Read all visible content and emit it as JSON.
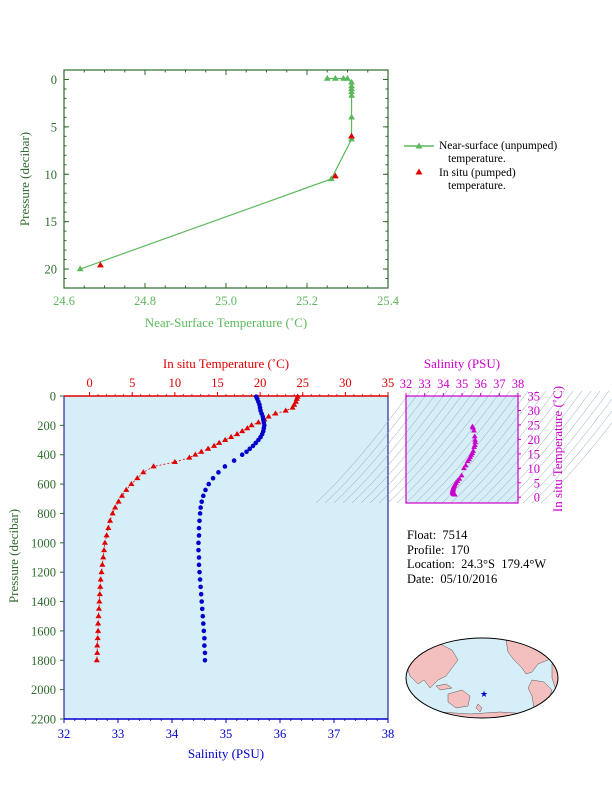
{
  "colors": {
    "green": "#5cb85c",
    "axis_green": "#2f6b2f",
    "red": "#e00000",
    "blue": "#0000cc",
    "magenta": "#cc00cc",
    "panel_bg": "#d6eef8",
    "land": "#f4bfbf",
    "ocean": "#d6eef8"
  },
  "float_info": {
    "float": "Float:  7514",
    "profile": "Profile:  170",
    "location": "Location:  24.3°S  179.4°W",
    "date": "Date:  05/10/2016"
  },
  "chart_data": [
    {
      "type": "line",
      "xlabel": "Near-Surface Temperature (˚C)",
      "ylabel": "Pressure (decibar)",
      "xlim": [
        24.6,
        25.4
      ],
      "ylim": [
        22,
        -1
      ],
      "xticks": [
        "24.6",
        "24.8",
        "25.0",
        "25.2",
        "25.4"
      ],
      "yticks": [
        "0",
        "5",
        "10",
        "15",
        "20"
      ],
      "series": [
        {
          "name": "Near-surface (unpumped) temperature.",
          "marker": "triangle",
          "color": "green",
          "points": [
            [
              25.25,
              -0.1
            ],
            [
              25.27,
              -0.1
            ],
            [
              25.29,
              -0.1
            ],
            [
              25.3,
              -0.1
            ],
            [
              25.31,
              0.3
            ],
            [
              25.31,
              0.7
            ],
            [
              25.31,
              1.0
            ],
            [
              25.31,
              1.3
            ],
            [
              25.31,
              1.7
            ],
            [
              25.31,
              4.0
            ],
            [
              25.31,
              6.3
            ],
            [
              25.26,
              10.5
            ],
            [
              24.64,
              20.0
            ]
          ]
        },
        {
          "name": "In situ (pumped) temperature.",
          "marker": "triangle",
          "color": "red",
          "points": [
            [
              25.31,
              6.0
            ],
            [
              25.27,
              10.2
            ],
            [
              24.69,
              19.6
            ]
          ]
        }
      ]
    },
    {
      "type": "line",
      "ylabel": "Pressure (decibar)",
      "top_xlabel": "In situ Temperature (˚C)",
      "bottom_xlabel": "Salinity (PSU)",
      "temp_lim": [
        -3,
        35
      ],
      "sal_lim": [
        32,
        38
      ],
      "ylim": [
        2200,
        0
      ],
      "temp_ticks": [
        "0",
        "5",
        "10",
        "15",
        "20",
        "25",
        "30",
        "35"
      ],
      "sal_ticks": [
        "32",
        "33",
        "34",
        "35",
        "36",
        "37",
        "38"
      ],
      "yticks": [
        "0",
        "200",
        "400",
        "600",
        "800",
        "1000",
        "1200",
        "1400",
        "1600",
        "1800",
        "2000",
        "2200"
      ],
      "series": [
        {
          "name": "In situ Temperature",
          "axis": "temperature",
          "marker": "triangle",
          "color": "red",
          "points": [
            [
              24.4,
              5
            ],
            [
              24.3,
              20
            ],
            [
              24.2,
              40
            ],
            [
              24.0,
              60
            ],
            [
              23.8,
              80
            ],
            [
              23.0,
              100
            ],
            [
              21.8,
              120
            ],
            [
              21.0,
              140
            ],
            [
              20.5,
              160
            ],
            [
              19.8,
              180
            ],
            [
              19.0,
              200
            ],
            [
              18.5,
              220
            ],
            [
              17.9,
              240
            ],
            [
              17.3,
              260
            ],
            [
              16.6,
              280
            ],
            [
              15.9,
              300
            ],
            [
              15.2,
              320
            ],
            [
              14.6,
              340
            ],
            [
              13.9,
              360
            ],
            [
              13.1,
              380
            ],
            [
              12.4,
              400
            ],
            [
              11.7,
              420
            ],
            [
              10.0,
              450
            ],
            [
              7.5,
              480
            ],
            [
              6.3,
              520
            ],
            [
              5.6,
              560
            ],
            [
              4.9,
              600
            ],
            [
              4.3,
              640
            ],
            [
              3.8,
              680
            ],
            [
              3.4,
              720
            ],
            [
              3.0,
              760
            ],
            [
              2.7,
              800
            ],
            [
              2.4,
              850
            ],
            [
              2.2,
              900
            ],
            [
              2.0,
              950
            ],
            [
              1.8,
              1000
            ],
            [
              1.7,
              1050
            ],
            [
              1.6,
              1100
            ],
            [
              1.5,
              1150
            ],
            [
              1.4,
              1200
            ],
            [
              1.3,
              1250
            ],
            [
              1.25,
              1300
            ],
            [
              1.2,
              1350
            ],
            [
              1.15,
              1400
            ],
            [
              1.1,
              1450
            ],
            [
              1.05,
              1500
            ],
            [
              1.0,
              1550
            ],
            [
              1.0,
              1600
            ],
            [
              0.95,
              1650
            ],
            [
              0.9,
              1700
            ],
            [
              0.9,
              1750
            ],
            [
              0.85,
              1800
            ]
          ]
        },
        {
          "name": "Salinity",
          "axis": "salinity",
          "marker": "circle",
          "color": "blue",
          "points": [
            [
              35.56,
              5
            ],
            [
              35.58,
              20
            ],
            [
              35.6,
              40
            ],
            [
              35.62,
              60
            ],
            [
              35.63,
              80
            ],
            [
              35.64,
              100
            ],
            [
              35.66,
              120
            ],
            [
              35.68,
              140
            ],
            [
              35.69,
              160
            ],
            [
              35.7,
              180
            ],
            [
              35.71,
              200
            ],
            [
              35.7,
              220
            ],
            [
              35.69,
              240
            ],
            [
              35.67,
              260
            ],
            [
              35.64,
              280
            ],
            [
              35.6,
              300
            ],
            [
              35.55,
              320
            ],
            [
              35.5,
              340
            ],
            [
              35.44,
              360
            ],
            [
              35.38,
              380
            ],
            [
              35.3,
              400
            ],
            [
              35.15,
              440
            ],
            [
              34.98,
              480
            ],
            [
              34.86,
              520
            ],
            [
              34.76,
              560
            ],
            [
              34.68,
              600
            ],
            [
              34.62,
              640
            ],
            [
              34.58,
              680
            ],
            [
              34.55,
              720
            ],
            [
              34.53,
              760
            ],
            [
              34.52,
              800
            ],
            [
              34.51,
              850
            ],
            [
              34.5,
              900
            ],
            [
              34.5,
              950
            ],
            [
              34.49,
              1000
            ],
            [
              34.49,
              1050
            ],
            [
              34.5,
              1100
            ],
            [
              34.5,
              1150
            ],
            [
              34.51,
              1200
            ],
            [
              34.52,
              1250
            ],
            [
              34.53,
              1300
            ],
            [
              34.54,
              1350
            ],
            [
              34.55,
              1400
            ],
            [
              34.56,
              1450
            ],
            [
              34.57,
              1500
            ],
            [
              34.58,
              1550
            ],
            [
              34.59,
              1600
            ],
            [
              34.6,
              1650
            ],
            [
              34.6,
              1700
            ],
            [
              34.61,
              1750
            ],
            [
              34.61,
              1800
            ]
          ]
        }
      ]
    },
    {
      "type": "scatter",
      "xlabel": "Salinity (PSU)",
      "ylabel": "In situ Temperature (˚C)",
      "xlim": [
        32,
        38
      ],
      "ylim": [
        -2,
        35
      ],
      "xticks": [
        "32",
        "33",
        "34",
        "35",
        "36",
        "37",
        "38"
      ],
      "yticks": [
        "0",
        "5",
        "10",
        "15",
        "20",
        "25",
        "30",
        "35"
      ],
      "color": "magenta",
      "points": [
        [
          35.56,
          24.4
        ],
        [
          35.6,
          24.0
        ],
        [
          35.64,
          23.0
        ],
        [
          35.68,
          21.0
        ],
        [
          35.7,
          19.8
        ],
        [
          35.71,
          19.0
        ],
        [
          35.69,
          18.0
        ],
        [
          35.65,
          17.3
        ],
        [
          35.6,
          16.0
        ],
        [
          35.55,
          15.2
        ],
        [
          35.5,
          14.6
        ],
        [
          35.44,
          13.9
        ],
        [
          35.38,
          13.1
        ],
        [
          35.3,
          12.4
        ],
        [
          35.2,
          11.0
        ],
        [
          35.1,
          10.0
        ],
        [
          34.98,
          7.5
        ],
        [
          34.86,
          6.3
        ],
        [
          34.76,
          5.6
        ],
        [
          34.68,
          4.9
        ],
        [
          34.62,
          4.3
        ],
        [
          34.58,
          3.8
        ],
        [
          34.55,
          3.4
        ],
        [
          34.53,
          3.0
        ],
        [
          34.52,
          2.7
        ],
        [
          34.51,
          2.4
        ],
        [
          34.5,
          2.2
        ],
        [
          34.5,
          2.0
        ],
        [
          34.49,
          1.8
        ],
        [
          34.5,
          1.6
        ],
        [
          34.51,
          1.4
        ],
        [
          34.53,
          1.25
        ],
        [
          34.55,
          1.15
        ],
        [
          34.57,
          1.05
        ],
        [
          34.59,
          1.0
        ],
        [
          34.6,
          0.95
        ],
        [
          34.61,
          0.85
        ]
      ]
    }
  ],
  "map": {
    "marker": {
      "lat": -24.3,
      "lon": -179.4
    }
  }
}
